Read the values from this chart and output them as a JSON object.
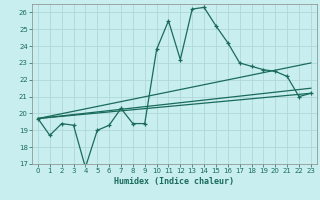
{
  "title": "",
  "xlabel": "Humidex (Indice chaleur)",
  "bg_color": "#c8eef0",
  "grid_color": "#b0d8d8",
  "line_color": "#1a6b5a",
  "xlim": [
    -0.5,
    23.5
  ],
  "ylim": [
    17,
    26.5
  ],
  "xticks": [
    0,
    1,
    2,
    3,
    4,
    5,
    6,
    7,
    8,
    9,
    10,
    11,
    12,
    13,
    14,
    15,
    16,
    17,
    18,
    19,
    20,
    21,
    22,
    23
  ],
  "yticks": [
    17,
    18,
    19,
    20,
    21,
    22,
    23,
    24,
    25,
    26
  ],
  "main_line": [
    [
      0,
      19.7
    ],
    [
      1,
      18.7
    ],
    [
      2,
      19.4
    ],
    [
      3,
      19.3
    ],
    [
      4,
      16.8
    ],
    [
      5,
      19.0
    ],
    [
      6,
      19.3
    ],
    [
      7,
      20.3
    ],
    [
      8,
      19.4
    ],
    [
      9,
      19.4
    ],
    [
      10,
      23.8
    ],
    [
      11,
      25.5
    ],
    [
      12,
      23.2
    ],
    [
      13,
      26.2
    ],
    [
      14,
      26.3
    ],
    [
      15,
      25.2
    ],
    [
      16,
      24.2
    ],
    [
      17,
      23.0
    ],
    [
      18,
      22.8
    ],
    [
      19,
      22.6
    ],
    [
      20,
      22.5
    ],
    [
      21,
      22.2
    ],
    [
      22,
      21.0
    ],
    [
      23,
      21.2
    ]
  ],
  "trend_lines": [
    {
      "x0": 0,
      "y0": 19.7,
      "x1": 23,
      "y1": 23.0
    },
    {
      "x0": 0,
      "y0": 19.7,
      "x1": 23,
      "y1": 21.5
    },
    {
      "x0": 0,
      "y0": 19.7,
      "x1": 23,
      "y1": 21.2
    }
  ]
}
